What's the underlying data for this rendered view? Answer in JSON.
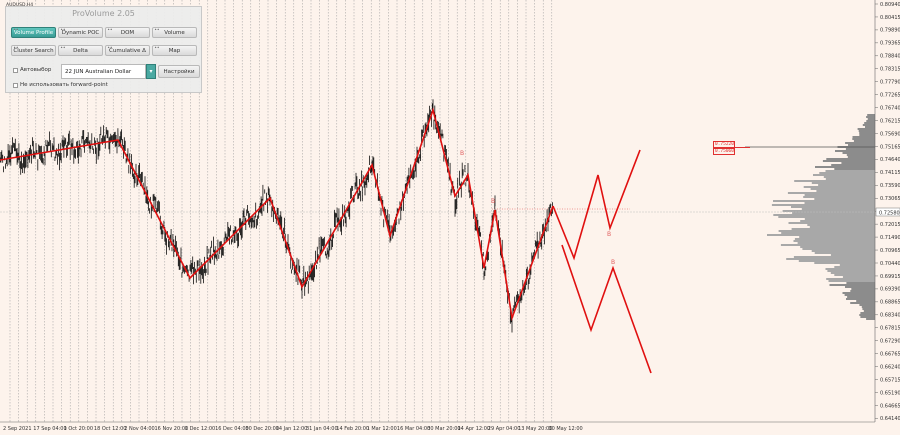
{
  "symbol_title": "AUDUSD,H4",
  "panel": {
    "title": "ProVolume 2.05",
    "buttons_row1": [
      "Volume Profile",
      "Dynamic POC",
      "DOM",
      "Volume"
    ],
    "buttons_row2": [
      "Cluster Search",
      "Delta",
      "Cumulative Δ",
      "Map"
    ],
    "auto_label": "Автовыбор",
    "symbol_value": "22 JUN Australian Dollar",
    "settings_label": "Настройки",
    "forward_label": "Не использовать forward-point"
  },
  "price_axis": {
    "labels": [
      "0.80940",
      "0.80415",
      "0.79890",
      "0.79365",
      "0.78840",
      "0.78315",
      "0.77790",
      "0.77265",
      "0.76740",
      "0.76215",
      "0.75690",
      "0.75165",
      "0.74640",
      "0.74115",
      "0.73590",
      "0.73065",
      "0.72540",
      "0.72015",
      "0.71490",
      "0.70965",
      "0.70440",
      "0.69915",
      "0.69390",
      "0.68865",
      "0.68340",
      "0.67815",
      "0.67290",
      "0.66765",
      "0.66240",
      "0.65715",
      "0.65190",
      "0.64665",
      "0.64140"
    ],
    "current_price": "0.72580"
  },
  "time_axis": {
    "labels": [
      "2 Sep 2021",
      "17 Sep 04:00",
      "1 Oct 20:00",
      "18 Oct 12:00",
      "2 Nov 04:00",
      "16 Nov 20:00",
      "1 Dec 12:00",
      "16 Dec 04:00",
      "30 Dec 20:00",
      "14 Jan 12:00",
      "31 Jan 04:00",
      "14 Feb 20:00",
      "1 Mar 12:00",
      "16 Mar 04:00",
      "30 Mar 20:00",
      "14 Apr 12:00",
      "29 Apr 04:00",
      "13 May 20:00",
      "30 May 12:00"
    ]
  },
  "annotations": {
    "marks": [
      "B",
      "B",
      "B",
      "B"
    ],
    "boxed_prices": [
      "0.75220",
      "0.75060"
    ]
  },
  "colors": {
    "background": "#fdf3ec",
    "zigzag": "#e01010",
    "candles": "#000000",
    "profile": "#888888",
    "accent": "#4aa9a2"
  }
}
